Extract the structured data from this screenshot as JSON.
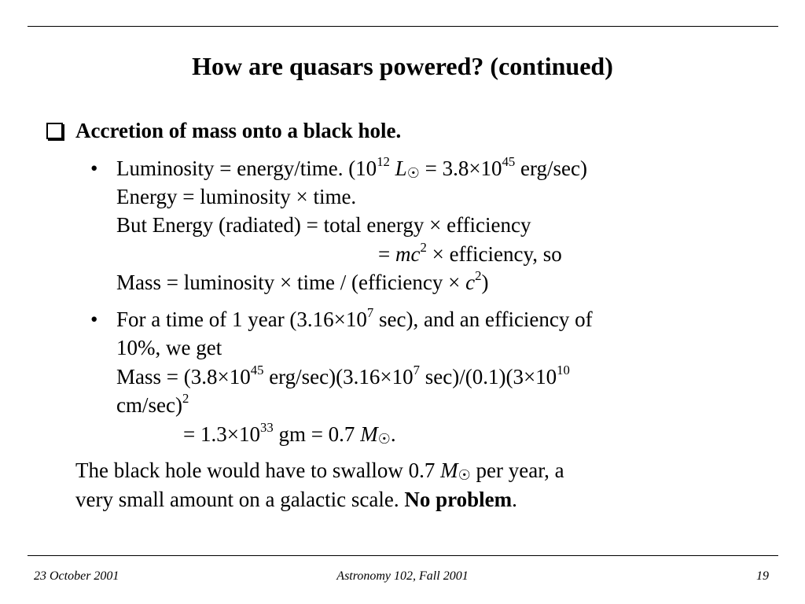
{
  "slide": {
    "title": "How are quasars powered? (continued)",
    "heading": "Accretion of mass onto a black hole.",
    "bullet_marker": "•",
    "bullet1": {
      "line1": {
        "a": "Luminosity = energy/time. (10",
        "exp": "12",
        "b": " L",
        "sun": "☉",
        "c": " = 3.8×10",
        "exp2": "45",
        "d": " erg/sec)"
      },
      "line2": "Energy = luminosity × time.",
      "line3": "But Energy (radiated) =  total energy × efficiency",
      "line4": {
        "a": "= ",
        "mc": "mc",
        "exp": "2",
        "b": " × efficiency, so"
      },
      "line5": {
        "a": "Mass = luminosity × time / (efficiency × ",
        "c": "c",
        "exp": "2",
        "b": ")"
      }
    },
    "bullet2": {
      "line1": {
        "a": "For a time of 1 year (3.16×10",
        "exp": "7",
        "b": " sec), and an efficiency of"
      },
      "line2": "10%, we get",
      "line3": {
        "a": "Mass = (3.8×10",
        "exp1": "45",
        "b": " erg/sec)(3.16×10",
        "exp2": "7",
        "c": " sec)/(0.1)(3×10",
        "exp3": "10"
      },
      "line4": {
        "a": "cm/sec)",
        "exp": "2"
      },
      "line5": {
        "a": "= 1.3×10",
        "exp": "33",
        "b": " gm = 0.7 ",
        "m": "M",
        "sun": "☉",
        "c": "."
      }
    },
    "conclusion": {
      "line1": {
        "a": "The black hole would have to swallow 0.7 ",
        "m": "M",
        "sun": "☉",
        "b": " per year, a"
      },
      "line2": {
        "a": "very small amount on a galactic scale. ",
        "bold": "No problem",
        "b": "."
      }
    }
  },
  "footer": {
    "date": "23 October 2001",
    "course": "Astronomy 102, Fall 2001",
    "page": "19"
  }
}
